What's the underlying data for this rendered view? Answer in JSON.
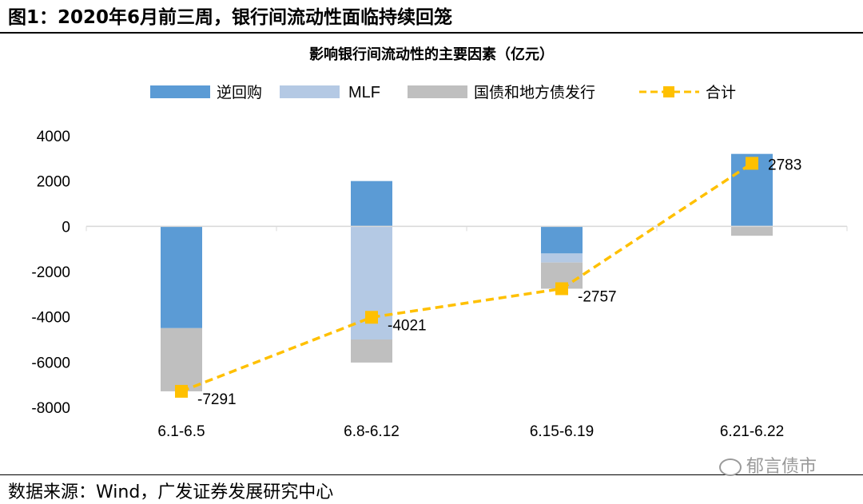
{
  "figure_title": "图1：2020年6月前三周，银行间流动性面临持续回笼",
  "source": "数据来源：Wind，广发证券发展研究中心",
  "watermark": "郁言债市",
  "colors": {
    "reverse_repo": "#5b9bd5",
    "mlf": "#b4c9e4",
    "bond_issuance": "#bfbfbf",
    "total": "#ffc000"
  },
  "chart_data": {
    "type": "bar",
    "stacked": true,
    "title": "影响银行间流动性的主要因素（亿元）",
    "categories": [
      "6.1-6.5",
      "6.8-6.12",
      "6.15-6.19",
      "6.21-6.22"
    ],
    "series": [
      {
        "name": "逆回购",
        "values": [
          -4500,
          2000,
          -1200,
          3200
        ]
      },
      {
        "name": "MLF",
        "values": [
          0,
          -5000,
          -400,
          0
        ]
      },
      {
        "name": "国债和地方债发行",
        "values": [
          -2791,
          -1021,
          -1157,
          -417
        ]
      }
    ],
    "line_series": {
      "name": "合计",
      "values": [
        -7291,
        -4021,
        -2757,
        2783
      ]
    },
    "data_labels": [
      "-7291",
      "-4021",
      "-2757",
      "2783"
    ],
    "ylim": [
      -8000,
      4000
    ],
    "yticks": [
      4000,
      2000,
      0,
      -2000,
      -4000,
      -6000,
      -8000
    ],
    "ytick_labels": [
      "4000",
      "2000",
      "0",
      "-2000",
      "-4000",
      "-6000",
      "-8000"
    ],
    "legend_position": "top"
  }
}
